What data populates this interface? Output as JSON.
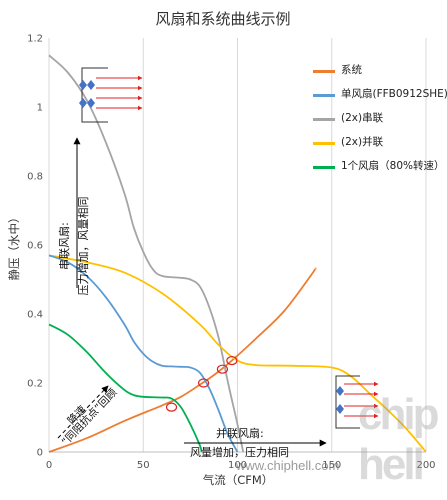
{
  "chart_data": {
    "type": "line",
    "title": "风扇和系统曲线示例",
    "xlabel": "气流（CFM）",
    "ylabel": "静压（水中）",
    "xlim": [
      0,
      200
    ],
    "ylim": [
      0,
      1.2
    ],
    "x_ticks": [
      "0",
      "50",
      "100",
      "150",
      "200"
    ],
    "y_ticks": [
      "0",
      "0.2",
      "0.4",
      "0.6",
      "0.8",
      "1",
      "1.2"
    ],
    "grid": "vertical",
    "legend_position": "right",
    "series": [
      {
        "name": "系统",
        "color": "#ED7D31",
        "points": [
          [
            0,
            0
          ],
          [
            20,
            0.04
          ],
          [
            40,
            0.09
          ],
          [
            60,
            0.135
          ],
          [
            70,
            0.16
          ],
          [
            80,
            0.195
          ],
          [
            88,
            0.225
          ],
          [
            97,
            0.265
          ],
          [
            110,
            0.33
          ],
          [
            125,
            0.41
          ],
          [
            140,
            0.52
          ],
          [
            141,
            0.53
          ]
        ]
      },
      {
        "name": "单风扇(FFB0912SHE)",
        "color": "#5B9BD5",
        "points": [
          [
            0,
            0.57
          ],
          [
            10,
            0.55
          ],
          [
            20,
            0.51
          ],
          [
            30,
            0.45
          ],
          [
            40,
            0.37
          ],
          [
            45,
            0.32
          ],
          [
            50,
            0.285
          ],
          [
            55,
            0.262
          ],
          [
            60,
            0.25
          ],
          [
            65,
            0.248
          ],
          [
            70,
            0.247
          ],
          [
            75,
            0.245
          ],
          [
            80,
            0.23
          ],
          [
            85,
            0.185
          ],
          [
            90,
            0.12
          ],
          [
            95,
            0.05
          ],
          [
            100,
            0
          ]
        ]
      },
      {
        "name": "(2x)串联",
        "color": "#A5A5A5",
        "points": [
          [
            0,
            1.15
          ],
          [
            10,
            1.1
          ],
          [
            20,
            1.02
          ],
          [
            30,
            0.9
          ],
          [
            40,
            0.75
          ],
          [
            45,
            0.65
          ],
          [
            50,
            0.58
          ],
          [
            55,
            0.53
          ],
          [
            60,
            0.51
          ],
          [
            70,
            0.505
          ],
          [
            75,
            0.5
          ],
          [
            80,
            0.48
          ],
          [
            85,
            0.42
          ],
          [
            90,
            0.33
          ],
          [
            95,
            0.2
          ],
          [
            100,
            0.08
          ],
          [
            103,
            0
          ]
        ]
      },
      {
        "name": "(2x)并联",
        "color": "#FFC000",
        "points": [
          [
            0,
            0.57
          ],
          [
            20,
            0.55
          ],
          [
            40,
            0.52
          ],
          [
            60,
            0.46
          ],
          [
            80,
            0.37
          ],
          [
            90,
            0.31
          ],
          [
            100,
            0.265
          ],
          [
            110,
            0.252
          ],
          [
            130,
            0.25
          ],
          [
            150,
            0.245
          ],
          [
            160,
            0.22
          ],
          [
            170,
            0.17
          ],
          [
            180,
            0.12
          ],
          [
            190,
            0.065
          ],
          [
            200,
            0
          ]
        ]
      },
      {
        "name": "1个风扇（80%转速）",
        "color": "#00B050",
        "points": [
          [
            0,
            0.37
          ],
          [
            10,
            0.34
          ],
          [
            20,
            0.29
          ],
          [
            30,
            0.23
          ],
          [
            40,
            0.18
          ],
          [
            45,
            0.165
          ],
          [
            50,
            0.16
          ],
          [
            60,
            0.158
          ],
          [
            65,
            0.155
          ],
          [
            70,
            0.13
          ],
          [
            75,
            0.08
          ],
          [
            80,
            0.02
          ],
          [
            81,
            0
          ]
        ]
      }
    ],
    "intersections": [
      [
        65,
        0.13
      ],
      [
        82,
        0.2
      ],
      [
        92,
        0.24
      ],
      [
        97,
        0.265
      ]
    ],
    "annotations": {
      "series_text": "串联风扇:\n压力增加，风量相同",
      "parallel_text": "并联风扇:\n风量增加，压力相同",
      "speed_text": "降速\n“同阻抗点”回顾"
    }
  },
  "watermark": "www.chiphell.com",
  "logo": "chip hell"
}
